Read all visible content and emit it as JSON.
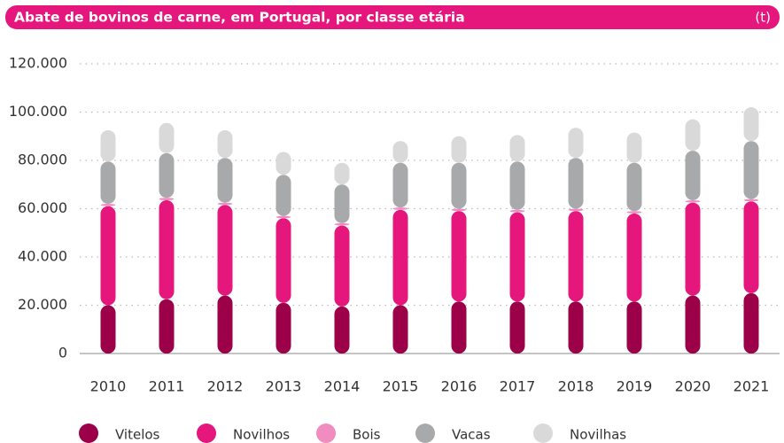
{
  "chart_data": {
    "type": "stacked_bar",
    "title": "Abate de bovinos de carne, em Portugal, por classe etária",
    "unit_label": "(t)",
    "categories": [
      "2010",
      "2011",
      "2012",
      "2013",
      "2014",
      "2015",
      "2016",
      "2017",
      "2018",
      "2019",
      "2020",
      "2021"
    ],
    "series": [
      {
        "name": "Vitelos",
        "color": "#9b0048",
        "values": [
          20000,
          22500,
          24000,
          21000,
          19500,
          20000,
          21500,
          21500,
          21500,
          21500,
          24000,
          25000
        ]
      },
      {
        "name": "Novilhos",
        "color": "#e5177d",
        "values": [
          41000,
          41000,
          37500,
          35000,
          33500,
          39500,
          37500,
          37000,
          37500,
          36500,
          38500,
          38000
        ]
      },
      {
        "name": "Bois",
        "color": "#f08cbf",
        "values": [
          1000,
          1000,
          1000,
          1000,
          1000,
          1000,
          1000,
          1000,
          1000,
          1000,
          1000,
          1000
        ]
      },
      {
        "name": "Vacas",
        "color": "#a7a9ab",
        "values": [
          17500,
          18500,
          18500,
          17000,
          16000,
          18500,
          19000,
          20000,
          21000,
          20000,
          20500,
          24000
        ]
      },
      {
        "name": "Novilhas",
        "color": "#d9d9da",
        "values": [
          13000,
          12500,
          11500,
          9500,
          9000,
          9000,
          11000,
          11000,
          12500,
          12500,
          13000,
          14000
        ]
      }
    ],
    "ylim": [
      0,
      120000
    ],
    "yticks": [
      0,
      {
        "value": 20000,
        "label": "20.000"
      },
      {
        "value": 40000,
        "label": "40.000"
      },
      {
        "value": 60000,
        "label": "60.000"
      },
      {
        "value": 80000,
        "label": "80.000"
      },
      {
        "value": 100000,
        "label": "100.000"
      },
      {
        "value": 120000,
        "label": "120.000"
      }
    ],
    "grid": true
  }
}
